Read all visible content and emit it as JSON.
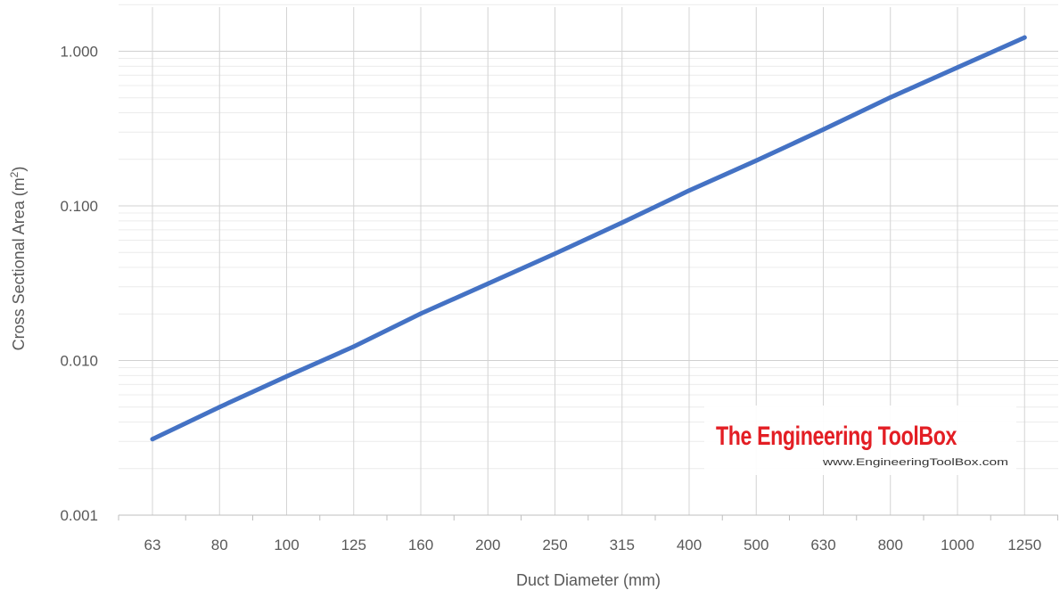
{
  "chart_data": {
    "type": "line",
    "scale_y": "log",
    "xlabel": "Duct Diameter (mm)",
    "ylabel_main": "Cross Sectional Area (m",
    "ylabel_sup": "2",
    "ylabel_end": ")",
    "categories": [
      "63",
      "80",
      "100",
      "125",
      "160",
      "200",
      "250",
      "315",
      "400",
      "500",
      "630",
      "800",
      "1000",
      "1250"
    ],
    "series": [
      {
        "values": [
          0.0031,
          0.005,
          0.0079,
          0.0123,
          0.0201,
          0.0314,
          0.0491,
          0.0779,
          0.1257,
          0.1963,
          0.3117,
          0.5027,
          0.7854,
          1.2272
        ],
        "color": "#4472c4"
      }
    ],
    "ylim": [
      0.001,
      10
    ],
    "yticks": [
      "0.001",
      "0.010",
      "0.100",
      "1.000"
    ],
    "grid": true
  },
  "watermark": {
    "title": "The Engineering ToolBox",
    "url": "www.EngineeringToolBox.com"
  }
}
